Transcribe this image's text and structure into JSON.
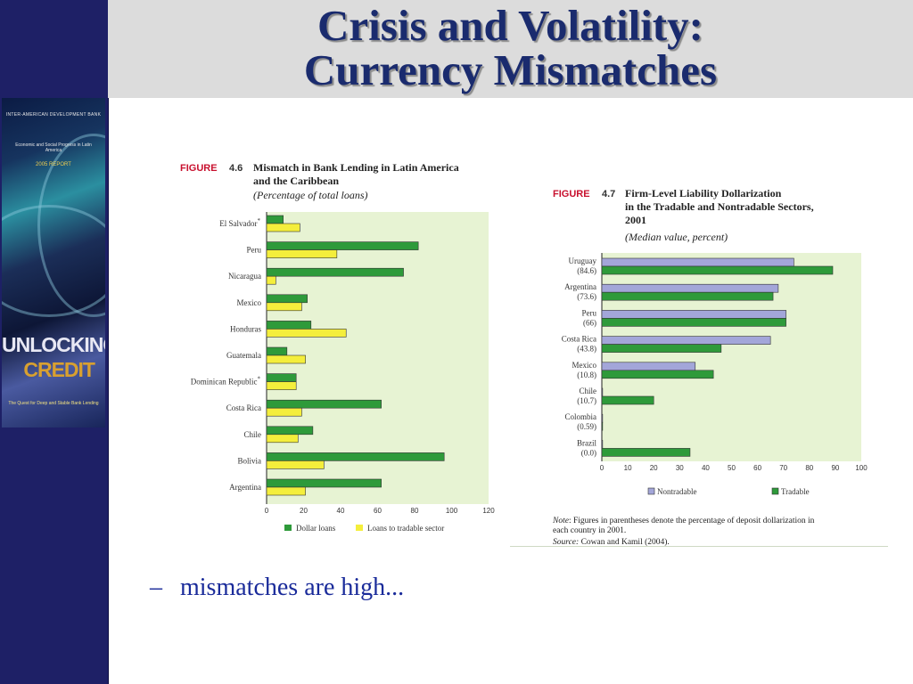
{
  "slide": {
    "title_line1": "Crisis and Volatility:",
    "title_line2": "Currency Mismatches",
    "bullet_marker": "–",
    "bullet_text": "mismatches are high..."
  },
  "book_cover": {
    "publisher": "INTER-AMERICAN DEVELOPMENT BANK",
    "report_line": "Economic and Social Progress in Latin America",
    "year_line": "2005 REPORT",
    "title_word1": "UNLOCKING",
    "title_word2": "CREDIT",
    "subtitle": "The Quest for Deep and Stable Bank Lending"
  },
  "colors": {
    "navy_band": "#1e2066",
    "title_text": "#1a2b6e",
    "bullet_text": "#1a2b9a",
    "figure_red": "#c8102e",
    "plot_bg": "#e7f3d3",
    "dollar_green": "#2e9a3a",
    "tradable_yellow": "#f4ee3c",
    "nontradable_lavender": "#a3a6d9"
  },
  "chart_data": [
    {
      "type": "bar",
      "orientation": "horizontal",
      "figure_label": "FIGURE",
      "figure_number": "4.6",
      "title_line1": "Mismatch in Bank Lending in Latin America",
      "title_line2": "and the Caribbean",
      "subtitle": "(Percentage of total loans)",
      "categories": [
        "El Salvador*",
        "Peru",
        "Nicaragua",
        "Mexico",
        "Honduras",
        "Guatemala",
        "Dominican Republic*",
        "Costa Rica",
        "Chile",
        "Bolivia",
        "Argentina"
      ],
      "series": [
        {
          "name": "Dollar loans",
          "color": "#2e9a3a",
          "values": [
            9,
            82,
            74,
            22,
            24,
            11,
            16,
            62,
            25,
            96,
            62
          ]
        },
        {
          "name": "Loans to tradable sector",
          "color": "#f4ee3c",
          "values": [
            18,
            38,
            5,
            19,
            43,
            21,
            16,
            19,
            17,
            31,
            21
          ]
        }
      ],
      "xlim": [
        0,
        120
      ],
      "xticks": [
        "0",
        "20",
        "40",
        "60",
        "80",
        "100",
        "120"
      ],
      "legend_position": "bottom",
      "grid": false
    },
    {
      "type": "bar",
      "orientation": "horizontal",
      "figure_label": "FIGURE",
      "figure_number": "4.7",
      "title_line1": "Firm-Level Liability Dollarization",
      "title_line2": "in the Tradable and Nontradable Sectors,",
      "title_line3": "2001",
      "subtitle": "(Median value, percent)",
      "categories": [
        "Uruguay",
        "Argentina",
        "Peru",
        "Costa Rica",
        "Mexico",
        "Chile",
        "Colombia",
        "Brazil"
      ],
      "category_notes": [
        "(84.6)",
        "(73.6)",
        "(66)",
        "(43.8)",
        "(10.8)",
        "(10.7)",
        "(0.59)",
        "(0.0)"
      ],
      "series": [
        {
          "name": "Nontradable",
          "color": "#a3a6d9",
          "values": [
            74,
            68,
            71,
            65,
            36,
            0.3,
            0.3,
            0.3
          ]
        },
        {
          "name": "Tradable",
          "color": "#2e9a3a",
          "values": [
            89,
            66,
            71,
            46,
            43,
            20,
            0.3,
            34
          ]
        }
      ],
      "xlim": [
        0,
        100
      ],
      "xticks": [
        "0",
        "10",
        "20",
        "30",
        "40",
        "50",
        "60",
        "70",
        "80",
        "90",
        "100"
      ],
      "legend_position": "bottom",
      "grid": false,
      "note_label": "Note",
      "note_text": ": Figures in parentheses denote the percentage of deposit dollarization in",
      "note_text_2": "each country in 2001.",
      "source_label": "Source:",
      "source_text": " Cowan and Kamil (2004)."
    }
  ]
}
